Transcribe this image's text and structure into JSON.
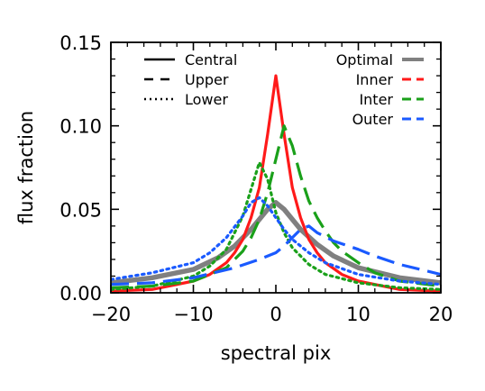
{
  "chart_data": {
    "type": "line",
    "title": "",
    "xlabel": "spectral pix",
    "ylabel": "flux fraction",
    "xlim": [
      -20,
      20
    ],
    "ylim": [
      0.0,
      0.15
    ],
    "x_ticks": [
      -20,
      -10,
      0,
      10,
      20
    ],
    "x_tick_labels": [
      "−20",
      "−10",
      "0",
      "10",
      "20"
    ],
    "y_ticks": [
      0.0,
      0.05,
      0.1,
      0.15
    ],
    "y_tick_labels": [
      "0.00",
      "0.05",
      "0.10",
      "0.15"
    ],
    "grid": false,
    "legend_linestyles": [
      {
        "label": "Central",
        "dash": "solid"
      },
      {
        "label": "Upper",
        "dash": "dashed"
      },
      {
        "label": "Lower",
        "dash": "dotted"
      }
    ],
    "legend_colors": [
      {
        "label": "Optimal",
        "color": "#808080"
      },
      {
        "label": "Inner",
        "color": "#ff1a1a"
      },
      {
        "label": "Inter",
        "color": "#1aa01a"
      },
      {
        "label": "Outer",
        "color": "#1a5aff"
      }
    ],
    "series": [
      {
        "name": "Optimal",
        "position": "Central",
        "color": "#808080",
        "dash": "solid",
        "width": 5.5,
        "x": [
          -20,
          -15,
          -10,
          -7,
          -5,
          -3,
          -2,
          -1,
          0,
          1,
          2,
          3,
          5,
          7,
          10,
          15,
          20
        ],
        "y": [
          0.006,
          0.009,
          0.014,
          0.021,
          0.028,
          0.038,
          0.044,
          0.05,
          0.054,
          0.05,
          0.044,
          0.038,
          0.029,
          0.022,
          0.015,
          0.009,
          0.006
        ]
      },
      {
        "name": "Inner",
        "position": "Central",
        "color": "#ff1a1a",
        "dash": "solid",
        "width": 3.2,
        "x": [
          -20,
          -15,
          -10,
          -8,
          -6,
          -5,
          -4,
          -3,
          -2,
          -1,
          0,
          1,
          2,
          3,
          4,
          5,
          6,
          8,
          10,
          15,
          20
        ],
        "y": [
          0.001,
          0.002,
          0.007,
          0.011,
          0.018,
          0.024,
          0.032,
          0.045,
          0.063,
          0.095,
          0.13,
          0.095,
          0.063,
          0.045,
          0.032,
          0.024,
          0.018,
          0.011,
          0.007,
          0.002,
          0.001
        ]
      },
      {
        "name": "Inter",
        "position": "Upper",
        "color": "#1aa01a",
        "dash": "dashed",
        "width": 3.2,
        "x": [
          -20,
          -15,
          -10,
          -6,
          -4,
          -3,
          -2,
          -1,
          0,
          1,
          2,
          3,
          4,
          5,
          6,
          7,
          8,
          10,
          12,
          15,
          20
        ],
        "y": [
          0.003,
          0.004,
          0.007,
          0.015,
          0.025,
          0.033,
          0.044,
          0.06,
          0.08,
          0.1,
          0.088,
          0.07,
          0.055,
          0.045,
          0.037,
          0.03,
          0.025,
          0.018,
          0.012,
          0.007,
          0.004
        ]
      },
      {
        "name": "Inter",
        "position": "Lower",
        "color": "#1aa01a",
        "dash": "dotted",
        "width": 3.2,
        "x": [
          -20,
          -15,
          -10,
          -8,
          -6,
          -4,
          -3,
          -2,
          -1,
          0,
          1,
          2,
          4,
          6,
          10,
          15,
          20
        ],
        "y": [
          0.002,
          0.004,
          0.01,
          0.016,
          0.026,
          0.046,
          0.062,
          0.078,
          0.068,
          0.048,
          0.036,
          0.027,
          0.017,
          0.011,
          0.006,
          0.003,
          0.002
        ]
      },
      {
        "name": "Outer",
        "position": "Upper",
        "color": "#1a5aff",
        "dash": "dashed",
        "width": 3.2,
        "x": [
          -20,
          -15,
          -10,
          -5,
          -2,
          0,
          1,
          2,
          3,
          4,
          5,
          7,
          10,
          12,
          15,
          20
        ],
        "y": [
          0.005,
          0.006,
          0.009,
          0.015,
          0.02,
          0.024,
          0.028,
          0.033,
          0.038,
          0.04,
          0.036,
          0.031,
          0.026,
          0.022,
          0.017,
          0.011
        ]
      },
      {
        "name": "Outer",
        "position": "Lower",
        "color": "#1a5aff",
        "dash": "dotted",
        "width": 3.2,
        "x": [
          -20,
          -15,
          -10,
          -8,
          -6,
          -4,
          -3,
          -2,
          -1,
          0,
          1,
          2,
          4,
          6,
          10,
          15,
          20
        ],
        "y": [
          0.008,
          0.012,
          0.018,
          0.024,
          0.033,
          0.046,
          0.054,
          0.057,
          0.052,
          0.045,
          0.038,
          0.032,
          0.024,
          0.018,
          0.011,
          0.007,
          0.005
        ]
      }
    ]
  }
}
